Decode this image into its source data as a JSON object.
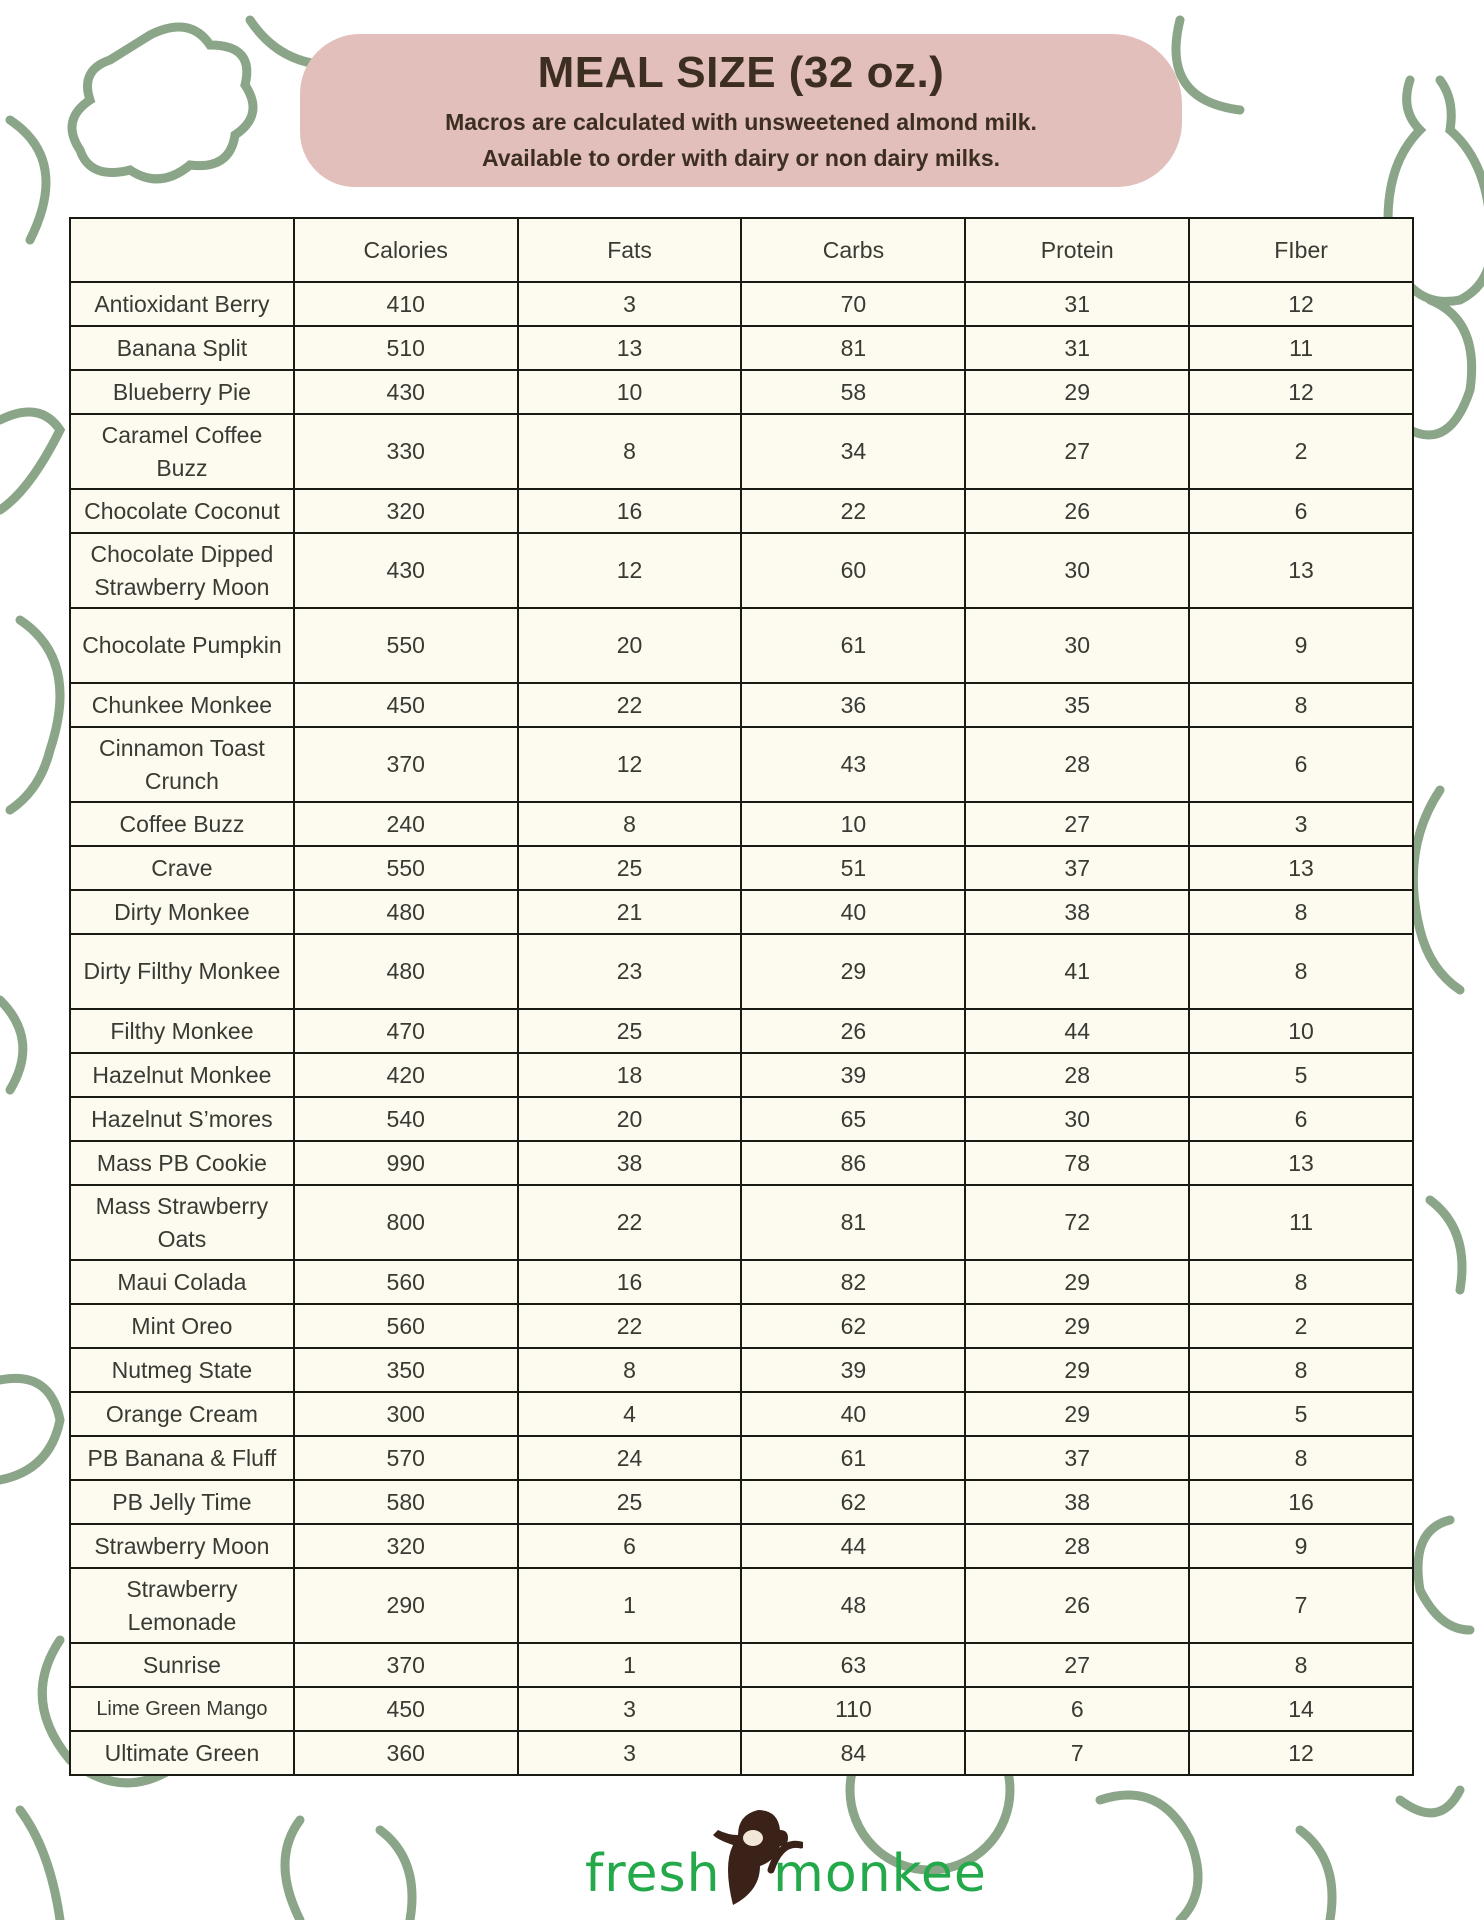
{
  "header": {
    "title": "MEAL SIZE (32 oz.)",
    "subtitle_line1": "Macros are calculated with unsweetened almond milk.",
    "subtitle_line2": "Available to order with dairy or non dairy milks."
  },
  "colors": {
    "banner": "#e2bfbb",
    "doodle": "#8aa587",
    "table_bg": "#fdfaef",
    "logo_green": "#23a94a",
    "monkey": "#3a2218"
  },
  "table": {
    "columns": [
      "",
      "Calories",
      "Fats",
      "Carbs",
      "Protein",
      "FIber"
    ],
    "rows": [
      [
        "Antioxidant Berry",
        "410",
        "3",
        "70",
        "31",
        "12"
      ],
      [
        "Banana Split",
        "510",
        "13",
        "81",
        "31",
        "11"
      ],
      [
        "Blueberry Pie",
        "430",
        "10",
        "58",
        "29",
        "12"
      ],
      [
        "Caramel Coffee Buzz",
        "330",
        "8",
        "34",
        "27",
        "2"
      ],
      [
        "Chocolate Coconut",
        "320",
        "16",
        "22",
        "26",
        "6"
      ],
      [
        "Chocolate Dipped Strawberry Moon",
        "430",
        "12",
        "60",
        "30",
        "13"
      ],
      [
        "Chocolate Pumpkin",
        "550",
        "20",
        "61",
        "30",
        "9"
      ],
      [
        "Chunkee Monkee",
        "450",
        "22",
        "36",
        "35",
        "8"
      ],
      [
        "Cinnamon Toast Crunch",
        "370",
        "12",
        "43",
        "28",
        "6"
      ],
      [
        "Coffee Buzz",
        "240",
        "8",
        "10",
        "27",
        "3"
      ],
      [
        "Crave",
        "550",
        "25",
        "51",
        "37",
        "13"
      ],
      [
        "Dirty Monkee",
        "480",
        "21",
        "40",
        "38",
        "8"
      ],
      [
        "Dirty Filthy Monkee",
        "480",
        "23",
        "29",
        "41",
        "8"
      ],
      [
        "Filthy Monkee",
        "470",
        "25",
        "26",
        "44",
        "10"
      ],
      [
        "Hazelnut Monkee",
        "420",
        "18",
        "39",
        "28",
        "5"
      ],
      [
        "Hazelnut S’mores",
        "540",
        "20",
        "65",
        "30",
        "6"
      ],
      [
        "Mass PB Cookie",
        "990",
        "38",
        "86",
        "78",
        "13"
      ],
      [
        "Mass Strawberry Oats",
        "800",
        "22",
        "81",
        "72",
        "11"
      ],
      [
        "Maui Colada",
        "560",
        "16",
        "82",
        "29",
        "8"
      ],
      [
        "Mint Oreo",
        "560",
        "22",
        "62",
        "29",
        "2"
      ],
      [
        "Nutmeg State",
        "350",
        "8",
        "39",
        "29",
        "8"
      ],
      [
        "Orange Cream",
        "300",
        "4",
        "40",
        "29",
        "5"
      ],
      [
        "PB Banana & Fluff",
        "570",
        "24",
        "61",
        "37",
        "8"
      ],
      [
        "PB Jelly Time",
        "580",
        "25",
        "62",
        "38",
        "16"
      ],
      [
        "Strawberry Moon",
        "320",
        "6",
        "44",
        "28",
        "9"
      ],
      [
        "Strawberry Lemonade",
        "290",
        "1",
        "48",
        "26",
        "7"
      ],
      [
        "Sunrise",
        "370",
        "1",
        "63",
        "27",
        "8"
      ],
      [
        "Lime Green Mango",
        "450",
        "3",
        "110",
        "6",
        "14"
      ],
      [
        "Ultimate Green",
        "360",
        "3",
        "84",
        "7",
        "12"
      ]
    ]
  },
  "logo": {
    "text": "freshmonkee",
    "icon": "monkey-icon"
  }
}
